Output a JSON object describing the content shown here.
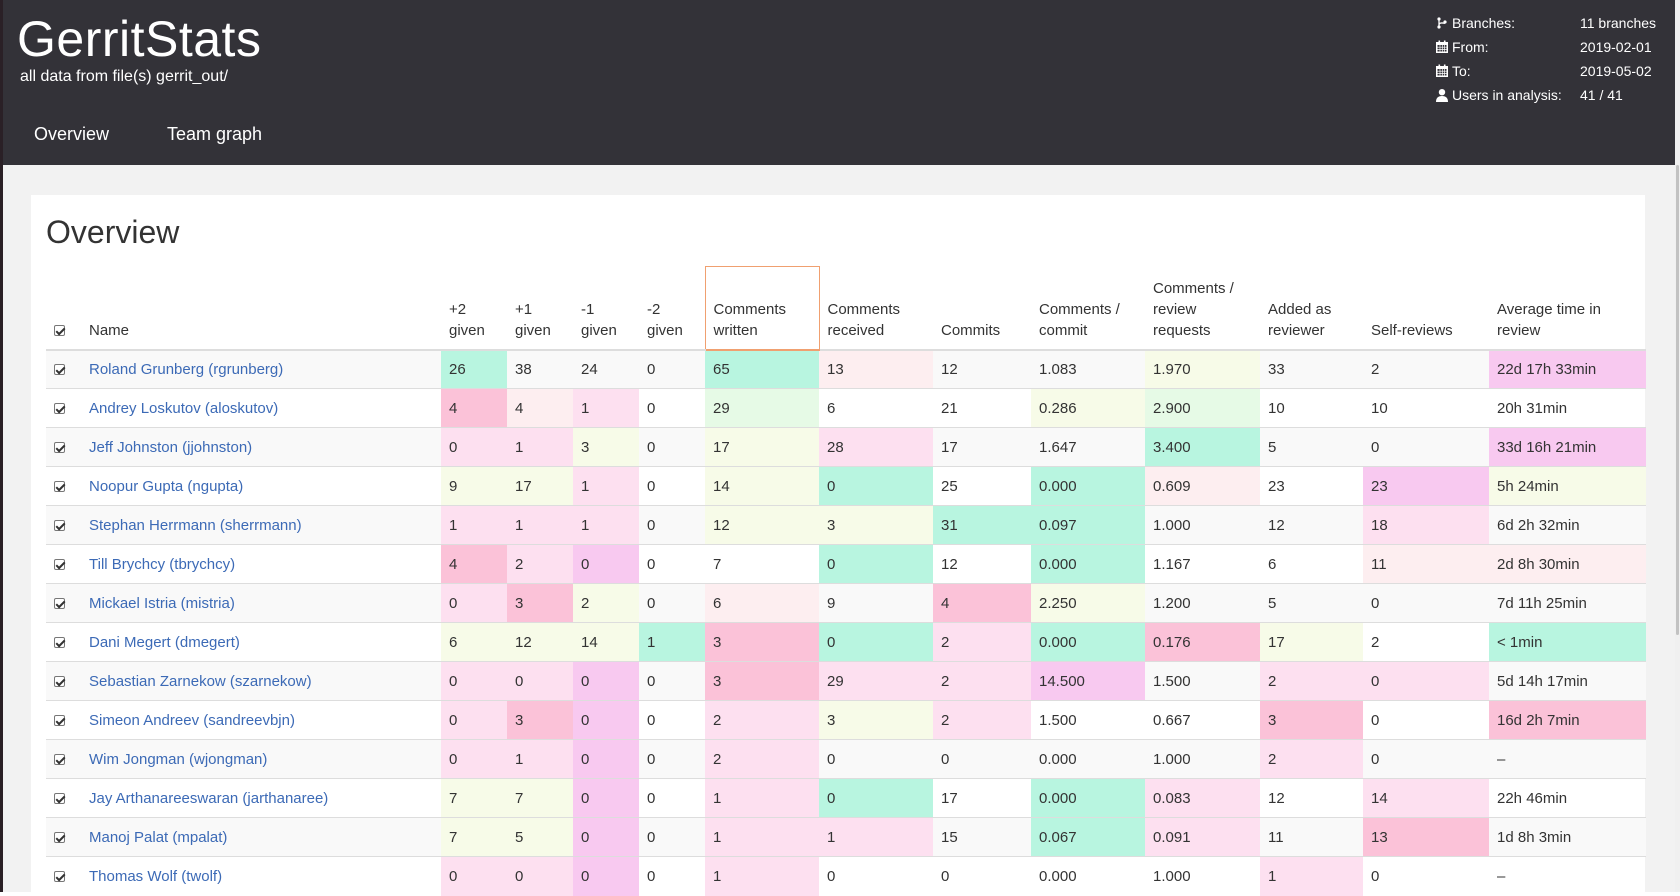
{
  "app": {
    "title": "GerritStats",
    "subtitle": "all data from file(s) gerrit_out/"
  },
  "nav": {
    "tabs": [
      {
        "label": "Overview"
      },
      {
        "label": "Team graph"
      }
    ]
  },
  "meta": {
    "branches": {
      "label": "Branches:",
      "value": "11 branches",
      "icon": "branch-icon"
    },
    "from": {
      "label": "From:",
      "value": "2019-02-01",
      "icon": "calendar-icon"
    },
    "to": {
      "label": "To:",
      "value": "2019-05-02",
      "icon": "calendar-icon"
    },
    "users": {
      "label": "Users in analysis:",
      "value": "41 / 41",
      "icon": "user-icon"
    }
  },
  "overview": {
    "title": "Overview",
    "columns": [
      {
        "key": "name",
        "label": "Name"
      },
      {
        "key": "plus2",
        "label": "+2 given"
      },
      {
        "key": "plus1",
        "label": "+1 given"
      },
      {
        "key": "minus1",
        "label": "-1 given"
      },
      {
        "key": "minus2",
        "label": "-2 given"
      },
      {
        "key": "comments_written",
        "label": "Comments written"
      },
      {
        "key": "comments_received",
        "label": "Comments received"
      },
      {
        "key": "commits",
        "label": "Commits"
      },
      {
        "key": "comments_per_commit",
        "label": "Comments / commit"
      },
      {
        "key": "comments_per_review",
        "label": "Comments / review requests"
      },
      {
        "key": "added_as_reviewer",
        "label": "Added as reviewer"
      },
      {
        "key": "self_reviews",
        "label": "Self-reviews"
      },
      {
        "key": "avg_time",
        "label": "Average time in review"
      }
    ],
    "sorted_column": "comments_written",
    "colors": {
      "green": "#b8f5e0",
      "light_green": "#e6fae6",
      "yellow": "#f7fbe8",
      "pink_light": "#fde0f0",
      "pink_lighter": "#fdeef0",
      "pink": "#fbc2d8",
      "magenta": "#f8c9f0",
      "link": "#3c6ab6",
      "header_bg": "#333238"
    },
    "rows": [
      {
        "name": "Roland Grunberg (rgrunberg)",
        "cells": [
          "26",
          "38",
          "24",
          "0",
          "65",
          "13",
          "12",
          "1.083",
          "1.970",
          "33",
          "2",
          "22d 17h 33min"
        ],
        "colors": [
          "g",
          "",
          "",
          "",
          "g",
          "lp",
          "",
          "",
          "y",
          "",
          "",
          "m"
        ]
      },
      {
        "name": "Andrey Loskutov (aloskutov)",
        "cells": [
          "4",
          "4",
          "1",
          "0",
          "29",
          "6",
          "21",
          "0.286",
          "2.900",
          "10",
          "10",
          "20h 31min"
        ],
        "colors": [
          "pk",
          "lp",
          "p",
          "",
          "lg",
          "",
          "",
          "y",
          "lg",
          "",
          "",
          ""
        ]
      },
      {
        "name": "Jeff Johnston (jjohnston)",
        "cells": [
          "0",
          "1",
          "3",
          "0",
          "17",
          "28",
          "17",
          "1.647",
          "3.400",
          "5",
          "0",
          "33d 16h 21min"
        ],
        "colors": [
          "p",
          "p",
          "y",
          "",
          "y",
          "p",
          "",
          "",
          "g",
          "",
          "",
          "m"
        ]
      },
      {
        "name": "Noopur Gupta (ngupta)",
        "cells": [
          "9",
          "17",
          "1",
          "0",
          "14",
          "0",
          "25",
          "0.000",
          "0.609",
          "23",
          "23",
          "5h 24min"
        ],
        "colors": [
          "y",
          "y",
          "p",
          "",
          "y",
          "g",
          "",
          "g",
          "lp",
          "",
          "m",
          "y"
        ]
      },
      {
        "name": "Stephan Herrmann (sherrmann)",
        "cells": [
          "1",
          "1",
          "1",
          "0",
          "12",
          "3",
          "31",
          "0.097",
          "1.000",
          "12",
          "18",
          "6d 2h 32min"
        ],
        "colors": [
          "p",
          "p",
          "p",
          "",
          "y",
          "y",
          "g",
          "g",
          "",
          "",
          "p",
          ""
        ]
      },
      {
        "name": "Till Brychcy (tbrychcy)",
        "cells": [
          "4",
          "2",
          "0",
          "0",
          "7",
          "0",
          "12",
          "0.000",
          "1.167",
          "6",
          "11",
          "2d 8h 30min"
        ],
        "colors": [
          "pk",
          "p",
          "m",
          "",
          "",
          "g",
          "",
          "g",
          "",
          "",
          "lp",
          "lp"
        ]
      },
      {
        "name": "Mickael Istria (mistria)",
        "cells": [
          "0",
          "3",
          "2",
          "0",
          "6",
          "9",
          "4",
          "2.250",
          "1.200",
          "5",
          "0",
          "7d 11h 25min"
        ],
        "colors": [
          "p",
          "pk",
          "y",
          "",
          "lp",
          "",
          "pk",
          "y",
          "",
          "",
          "",
          ""
        ]
      },
      {
        "name": "Dani Megert (dmegert)",
        "cells": [
          "6",
          "12",
          "14",
          "1",
          "3",
          "0",
          "2",
          "0.000",
          "0.176",
          "17",
          "2",
          "< 1min"
        ],
        "colors": [
          "y",
          "y",
          "y",
          "g",
          "pk",
          "g",
          "p",
          "g",
          "pk",
          "y",
          "",
          "g"
        ]
      },
      {
        "name": "Sebastian Zarnekow (szarnekow)",
        "cells": [
          "0",
          "0",
          "0",
          "0",
          "3",
          "29",
          "2",
          "14.500",
          "1.500",
          "2",
          "0",
          "5d 14h 17min"
        ],
        "colors": [
          "p",
          "p",
          "m",
          "",
          "pk",
          "p",
          "p",
          "m",
          "",
          "p",
          "p",
          ""
        ]
      },
      {
        "name": "Simeon Andreev (sandreevbjn)",
        "cells": [
          "0",
          "3",
          "0",
          "0",
          "2",
          "3",
          "2",
          "1.500",
          "0.667",
          "3",
          "0",
          "16d 2h 7min"
        ],
        "colors": [
          "p",
          "pk",
          "m",
          "",
          "p",
          "y",
          "p",
          "",
          "",
          "pk",
          "",
          "pk"
        ]
      },
      {
        "name": "Wim Jongman (wjongman)",
        "cells": [
          "0",
          "1",
          "0",
          "0",
          "2",
          "0",
          "0",
          "0.000",
          "1.000",
          "2",
          "0",
          "–"
        ],
        "colors": [
          "p",
          "p",
          "m",
          "",
          "p",
          "",
          "",
          "",
          "",
          "p",
          "",
          ""
        ]
      },
      {
        "name": "Jay Arthanareeswaran (jarthanaree)",
        "cells": [
          "7",
          "7",
          "0",
          "0",
          "1",
          "0",
          "17",
          "0.000",
          "0.083",
          "12",
          "14",
          "22h 46min"
        ],
        "colors": [
          "y",
          "y",
          "m",
          "",
          "p",
          "g",
          "",
          "g",
          "p",
          "",
          "p",
          ""
        ]
      },
      {
        "name": "Manoj Palat (mpalat)",
        "cells": [
          "7",
          "5",
          "0",
          "0",
          "1",
          "1",
          "15",
          "0.067",
          "0.091",
          "11",
          "13",
          "1d 8h 3min"
        ],
        "colors": [
          "y",
          "y",
          "m",
          "",
          "p",
          "p",
          "",
          "g",
          "p",
          "",
          "pk",
          ""
        ]
      },
      {
        "name": "Thomas Wolf (twolf)",
        "cells": [
          "0",
          "0",
          "0",
          "0",
          "1",
          "0",
          "0",
          "0.000",
          "1.000",
          "1",
          "0",
          "–"
        ],
        "colors": [
          "p",
          "p",
          "m",
          "",
          "p",
          "",
          "",
          "",
          "",
          "p",
          "",
          ""
        ]
      }
    ]
  }
}
